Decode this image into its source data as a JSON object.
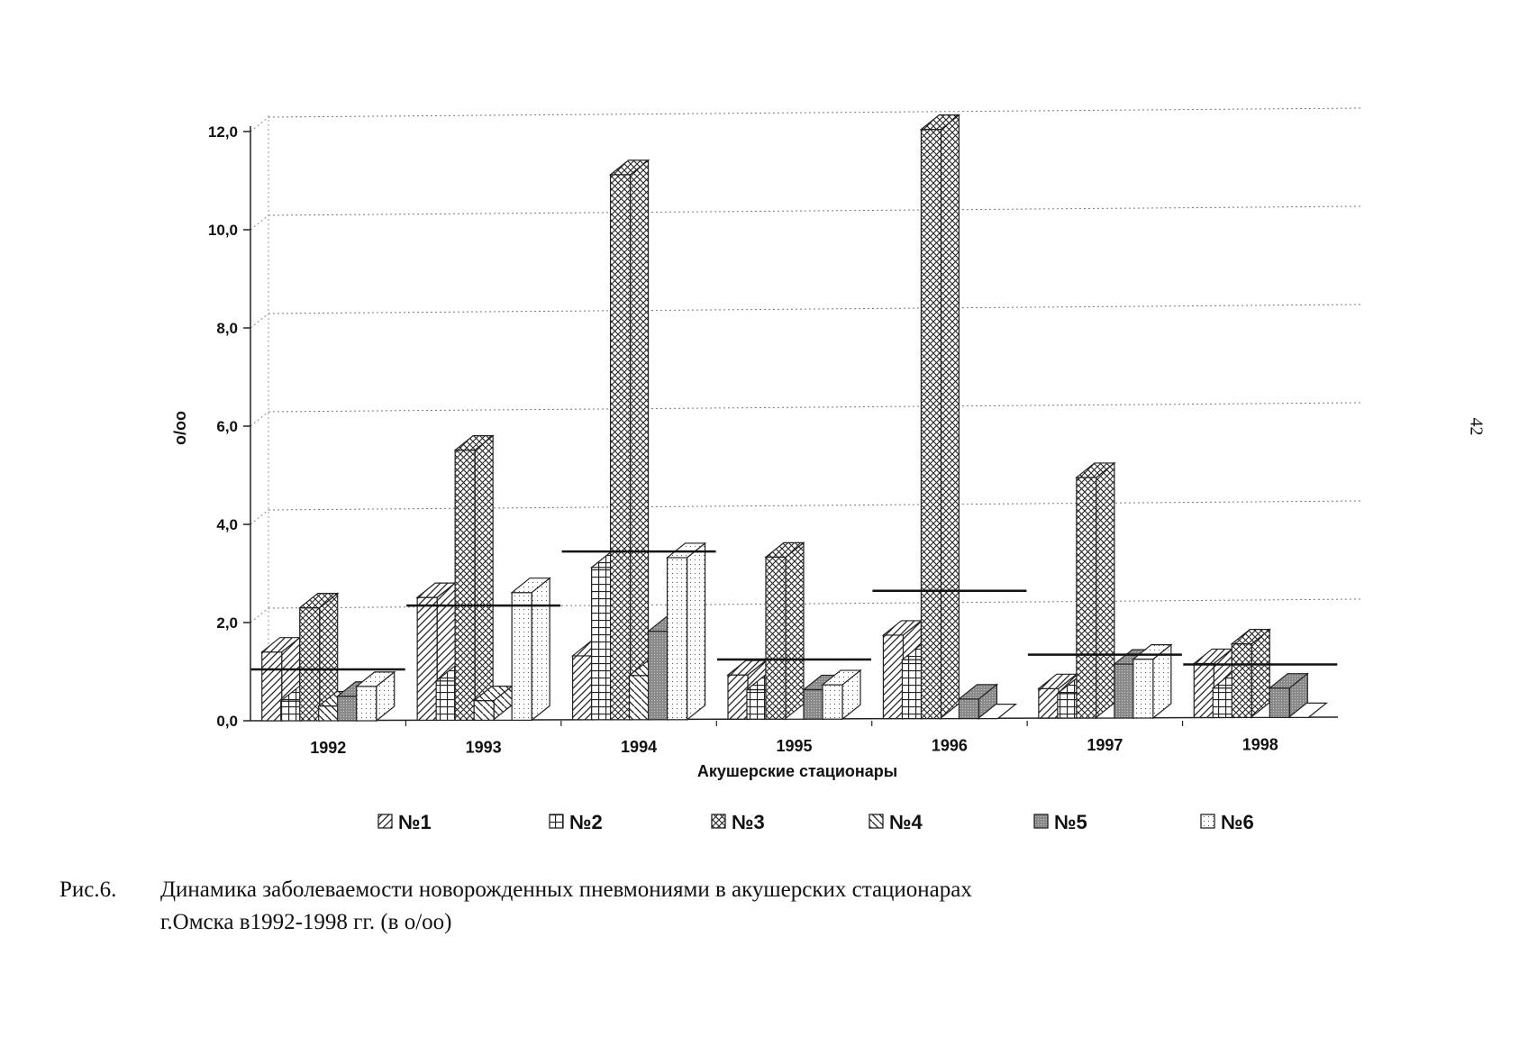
{
  "chart_data": {
    "type": "bar",
    "ylabel": "o/oo",
    "xlabel": "Акушерские стационары",
    "ylim": [
      0,
      12
    ],
    "y_ticks": [
      "0,0",
      "2,0",
      "4,0",
      "6,0",
      "8,0",
      "10,0",
      "12,0"
    ],
    "categories": [
      "1992",
      "1993",
      "1994",
      "1995",
      "1996",
      "1997",
      "1998"
    ],
    "series": [
      {
        "name": "№1",
        "values": [
          1.4,
          2.5,
          1.3,
          0.9,
          1.7,
          0.6,
          1.1
        ]
      },
      {
        "name": "№2",
        "values": [
          0.4,
          0.8,
          3.1,
          0.6,
          1.2,
          0.5,
          0.6
        ]
      },
      {
        "name": "№3",
        "values": [
          2.3,
          5.5,
          11.1,
          3.3,
          12.0,
          4.9,
          1.5
        ]
      },
      {
        "name": "№4",
        "values": [
          0.3,
          0.4,
          0.9,
          0.0,
          0.0,
          0.0,
          0.0
        ]
      },
      {
        "name": "№5",
        "values": [
          0.5,
          0.0,
          1.8,
          0.6,
          0.4,
          1.1,
          0.6
        ]
      },
      {
        "name": "№6",
        "values": [
          0.7,
          2.6,
          3.3,
          0.7,
          0.0,
          1.2,
          0.0
        ]
      }
    ],
    "average_lines": [
      0.9,
      2.2,
      3.3,
      1.1,
      2.5,
      1.2,
      1.0
    ],
    "grid": "dotted horizontal",
    "legend_position": "bottom",
    "colors": {
      "bar_fill": "#ffffff",
      "stroke": "#222222",
      "shade": "#9a9a9a",
      "grid": "#777777"
    }
  },
  "caption": {
    "label": "Рис.6.",
    "line1": "Динамика заболеваемости новорожденных пневмониями в акушерских стационарах",
    "line2": "г.Омска в1992-1998 гг. (в о/оо)"
  },
  "page_number": "42"
}
